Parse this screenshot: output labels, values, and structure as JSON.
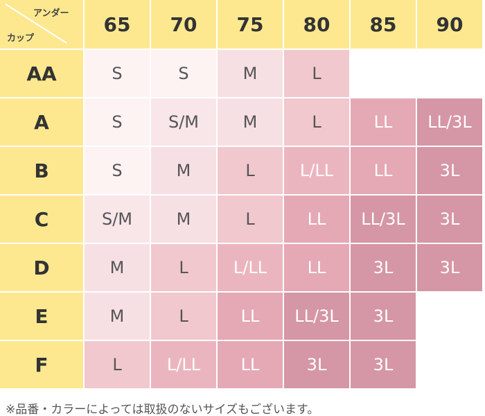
{
  "header": {
    "under": "アンダー",
    "cup": "カップ",
    "columns": [
      65,
      70,
      75,
      80,
      85,
      90
    ],
    "color": "#fde890"
  },
  "rows": [
    {
      "label": "AA",
      "cells": [
        {
          "text": "S",
          "color": "#fdf3f3",
          "text_color": "#555555"
        },
        {
          "text": "S",
          "color": "#fdf3f3",
          "text_color": "#555555"
        },
        {
          "text": "M",
          "color": "#f6e0e3",
          "text_color": "#555555"
        },
        {
          "text": "L",
          "color": "#f0c8ce",
          "text_color": "#555555"
        },
        null,
        null
      ]
    },
    {
      "label": "A",
      "cells": [
        {
          "text": "S",
          "color": "#fdf3f3",
          "text_color": "#555555"
        },
        {
          "text": "S/M",
          "color": "#f9e6e8",
          "text_color": "#555555"
        },
        {
          "text": "M",
          "color": "#f6e0e3",
          "text_color": "#555555"
        },
        {
          "text": "L",
          "color": "#f0c8ce",
          "text_color": "#555555"
        },
        {
          "text": "LL",
          "color": "#e5a8b5",
          "text_color": "#ffffff"
        },
        {
          "text": "LL/3L",
          "color": "#d596a5",
          "text_color": "#ffffff"
        }
      ]
    },
    {
      "label": "B",
      "cells": [
        {
          "text": "S",
          "color": "#fdf3f3",
          "text_color": "#555555"
        },
        {
          "text": "M",
          "color": "#f6e0e3",
          "text_color": "#555555"
        },
        {
          "text": "L",
          "color": "#f0c8ce",
          "text_color": "#555555"
        },
        {
          "text": "L/LL",
          "color": "#ebb5bf",
          "text_color": "#ffffff"
        },
        {
          "text": "LL",
          "color": "#e5a8b5",
          "text_color": "#ffffff"
        },
        {
          "text": "3L",
          "color": "#d596a5",
          "text_color": "#ffffff"
        }
      ]
    },
    {
      "label": "C",
      "cells": [
        {
          "text": "S/M",
          "color": "#f9e6e8",
          "text_color": "#555555"
        },
        {
          "text": "M",
          "color": "#f6e0e3",
          "text_color": "#555555"
        },
        {
          "text": "L",
          "color": "#f0c8ce",
          "text_color": "#555555"
        },
        {
          "text": "LL",
          "color": "#e5a8b5",
          "text_color": "#ffffff"
        },
        {
          "text": "LL/3L",
          "color": "#d596a5",
          "text_color": "#ffffff"
        },
        {
          "text": "3L",
          "color": "#d596a5",
          "text_color": "#ffffff"
        }
      ]
    },
    {
      "label": "D",
      "cells": [
        {
          "text": "M",
          "color": "#f6e0e3",
          "text_color": "#555555"
        },
        {
          "text": "L",
          "color": "#f0c8ce",
          "text_color": "#555555"
        },
        {
          "text": "L/LL",
          "color": "#ebb5bf",
          "text_color": "#ffffff"
        },
        {
          "text": "LL",
          "color": "#e5a8b5",
          "text_color": "#ffffff"
        },
        {
          "text": "3L",
          "color": "#d596a5",
          "text_color": "#ffffff"
        },
        {
          "text": "3L",
          "color": "#d596a5",
          "text_color": "#ffffff"
        }
      ]
    },
    {
      "label": "E",
      "cells": [
        {
          "text": "M",
          "color": "#f6e0e3",
          "text_color": "#555555"
        },
        {
          "text": "L",
          "color": "#f0c8ce",
          "text_color": "#555555"
        },
        {
          "text": "LL",
          "color": "#e5a8b5",
          "text_color": "#ffffff"
        },
        {
          "text": "LL/3L",
          "color": "#d596a5",
          "text_color": "#ffffff"
        },
        {
          "text": "3L",
          "color": "#d596a5",
          "text_color": "#ffffff"
        },
        null
      ]
    },
    {
      "label": "F",
      "cells": [
        {
          "text": "L",
          "color": "#f0c8ce",
          "text_color": "#555555"
        },
        {
          "text": "L/LL",
          "color": "#ebb5bf",
          "text_color": "#ffffff"
        },
        {
          "text": "LL",
          "color": "#e5a8b5",
          "text_color": "#ffffff"
        },
        {
          "text": "3L",
          "color": "#d596a5",
          "text_color": "#ffffff"
        },
        {
          "text": "3L",
          "color": "#d596a5",
          "text_color": "#ffffff"
        },
        null
      ]
    }
  ],
  "note": "※品番・カラーによっては取扱のないサイズもございます。"
}
